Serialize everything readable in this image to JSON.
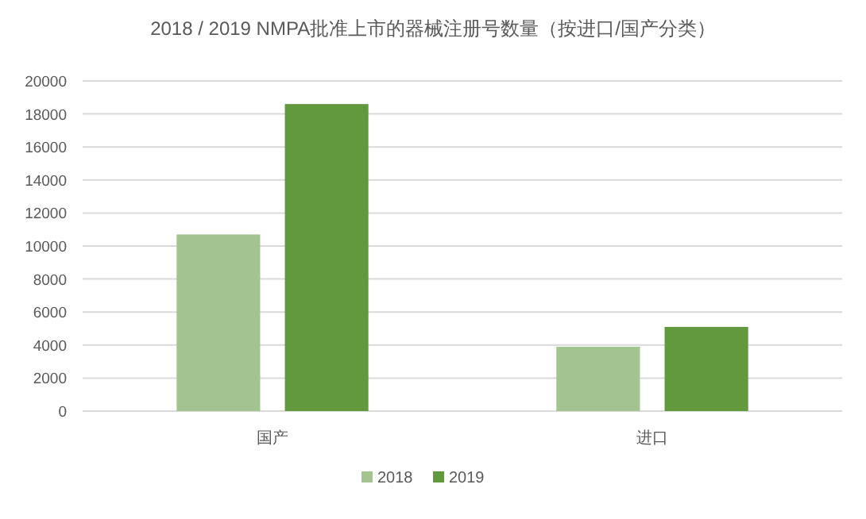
{
  "chart_data": {
    "type": "bar",
    "title": "2018 / 2019 NMPA批准上市的器械注册号数量（按进口/国产分类）",
    "categories": [
      "国产",
      "进口"
    ],
    "series": [
      {
        "name": "2018",
        "color": "#a3c490",
        "values": [
          10700,
          3900
        ]
      },
      {
        "name": "2019",
        "color": "#62993e",
        "values": [
          18600,
          5100
        ]
      }
    ],
    "ylim": [
      0,
      20000
    ],
    "yticks": [
      0,
      2000,
      4000,
      6000,
      8000,
      10000,
      12000,
      14000,
      16000,
      18000,
      20000
    ],
    "grid": "y",
    "legend": "bottom"
  }
}
